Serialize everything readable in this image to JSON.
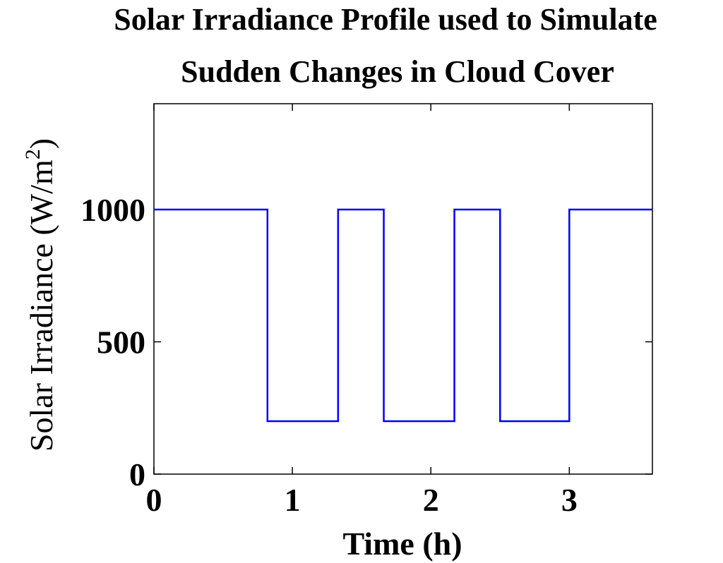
{
  "chart_data": {
    "type": "line",
    "title_lines": [
      "Solar Irradiance Profile used to Simulate",
      "Sudden Changes in Cloud Cover"
    ],
    "xlabel": "Time (h)",
    "ylabel": {
      "main": "Solar Irradiance (W/m",
      "superscript": "2",
      "close": ")"
    },
    "xlim": [
      0,
      3.6
    ],
    "ylim": [
      0,
      1400
    ],
    "x_ticks": [
      0,
      1,
      2,
      3
    ],
    "y_ticks": [
      0,
      500,
      1000
    ],
    "x_tick_labels": [
      "0",
      "1",
      "2",
      "3"
    ],
    "y_tick_labels": [
      "0",
      "500",
      "1000"
    ],
    "grid": false,
    "line_color": "#0000ff",
    "series": [
      {
        "x": [
          0,
          0.82,
          0.82,
          1.33,
          1.33,
          1.66,
          1.66,
          2.17,
          2.17,
          2.5,
          2.5,
          3.0,
          3.0,
          3.6
        ],
        "y": [
          1000,
          1000,
          200,
          200,
          1000,
          1000,
          200,
          200,
          1000,
          1000,
          200,
          200,
          1000,
          1000
        ]
      }
    ]
  }
}
